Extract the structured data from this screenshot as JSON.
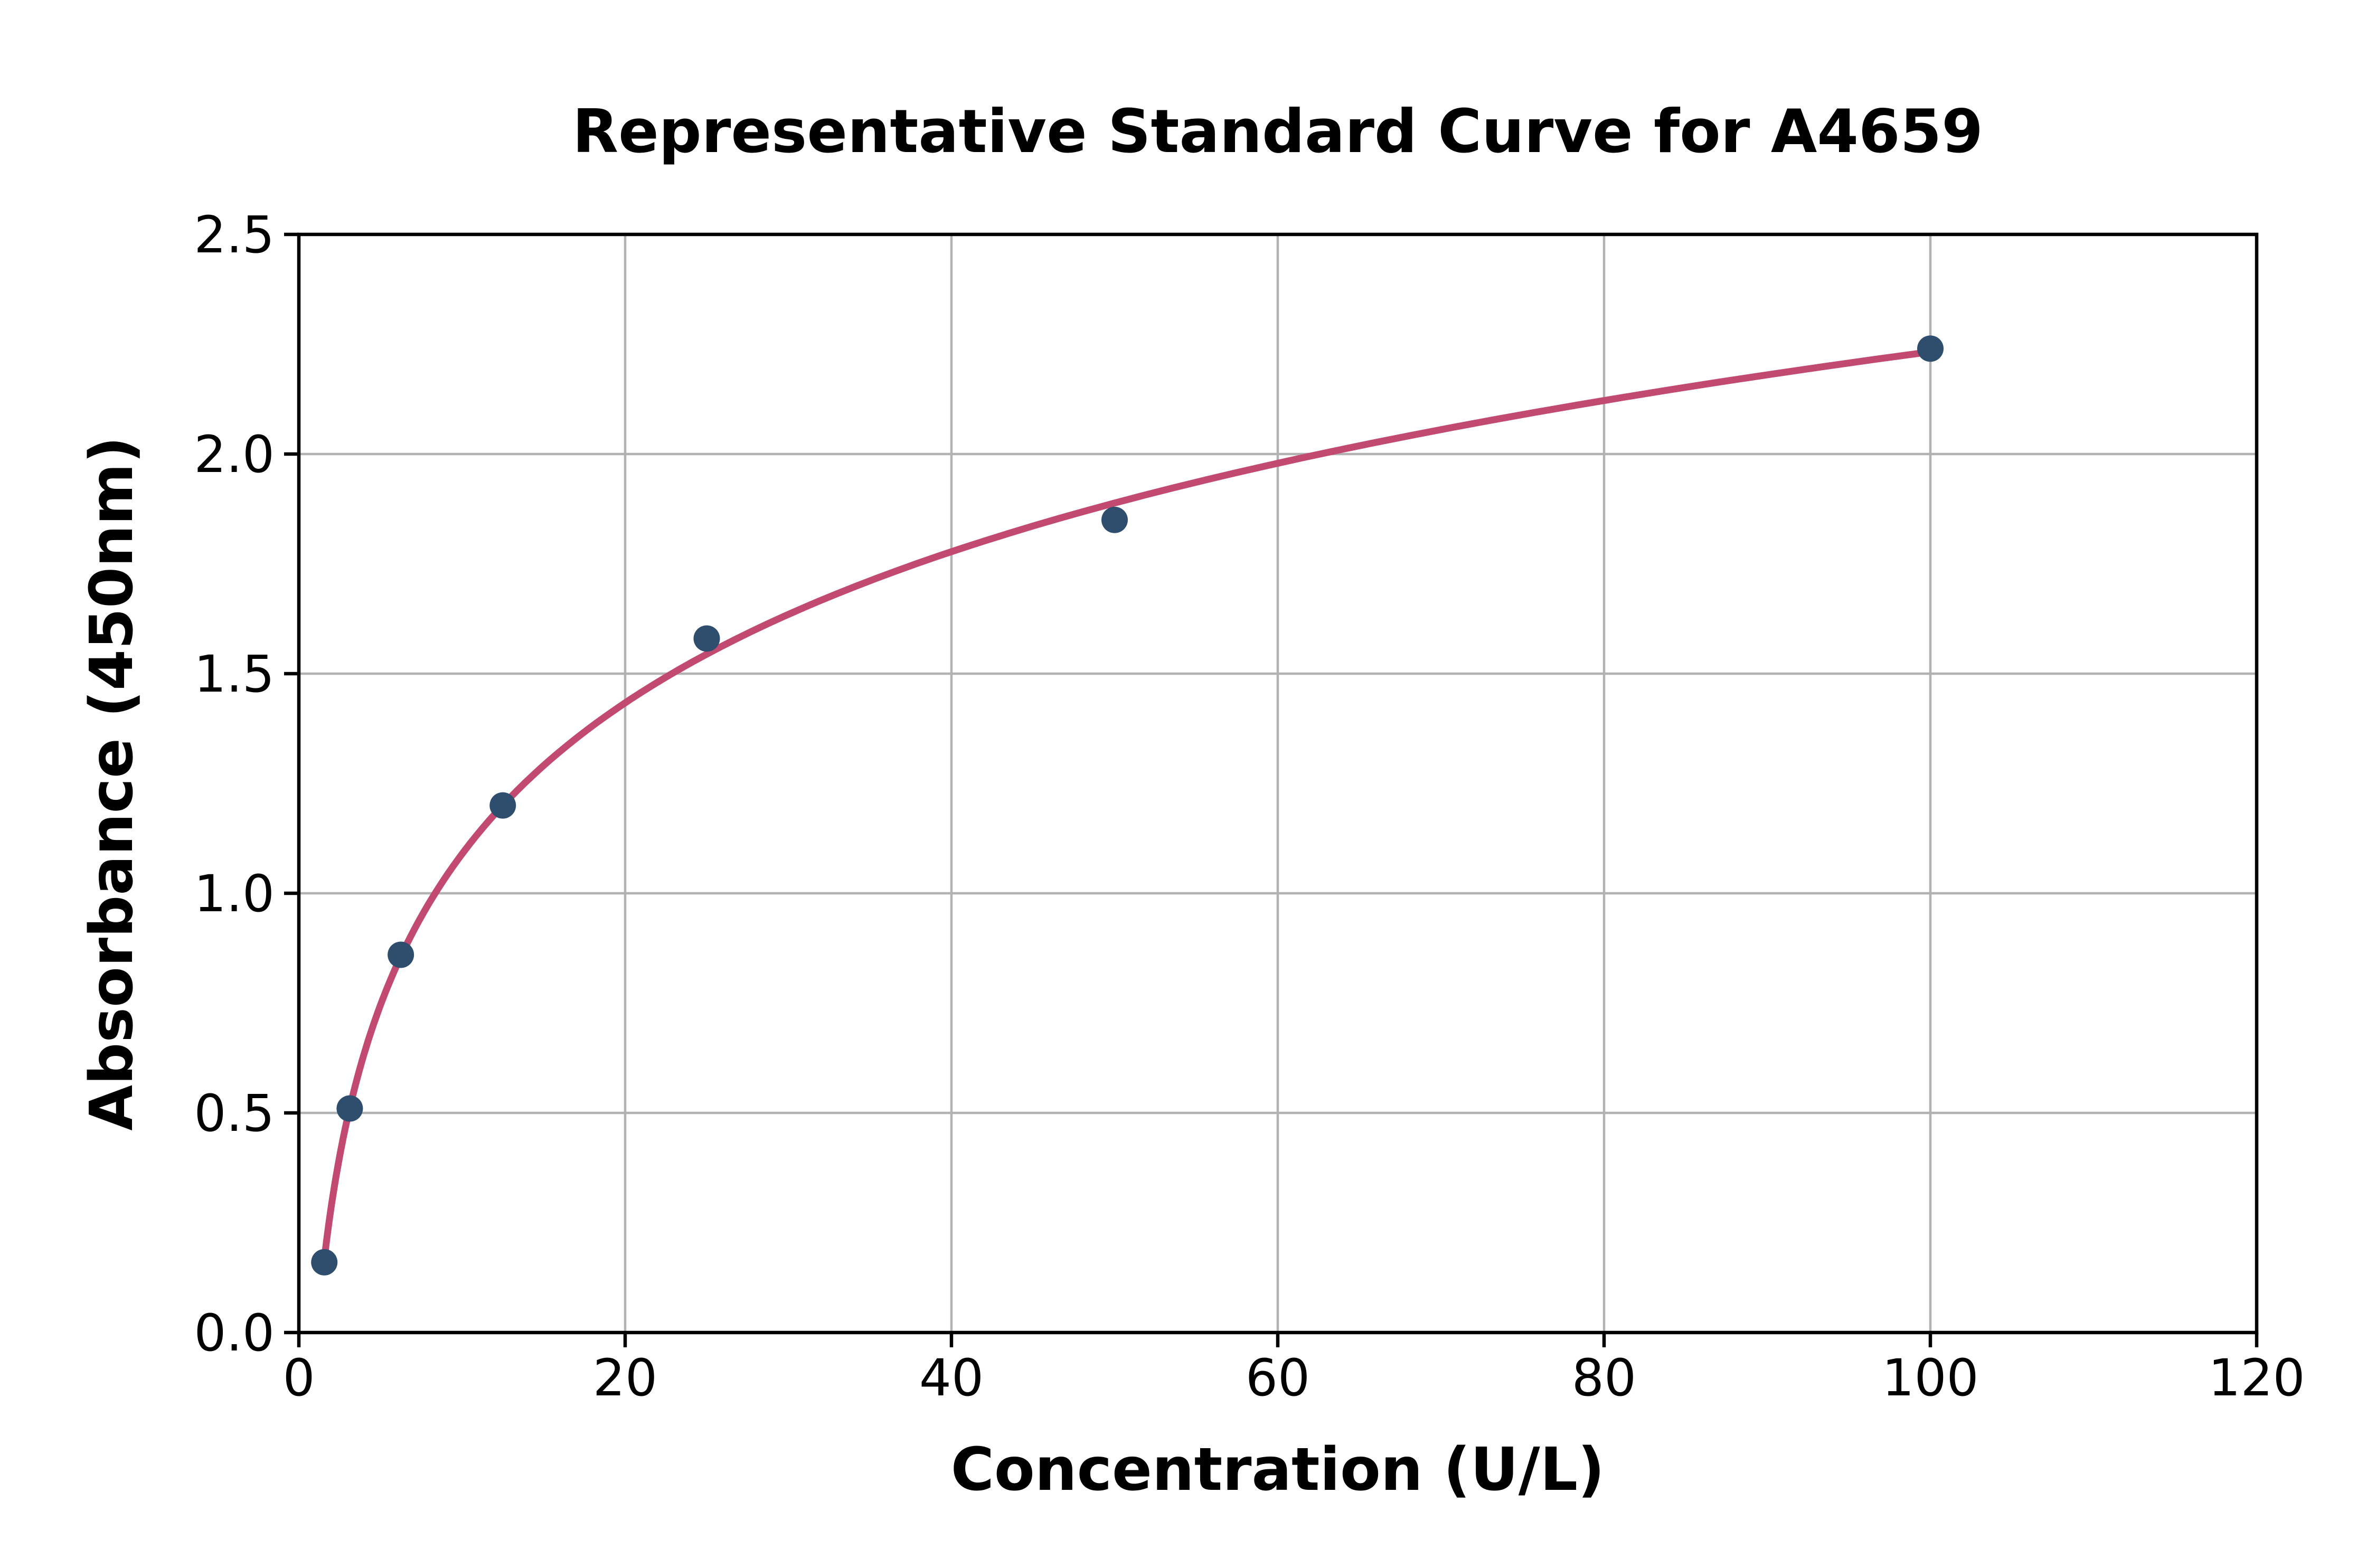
{
  "title": "Representative Standard Curve for A4659",
  "chart_data": {
    "type": "scatter",
    "title": "Representative Standard Curve for A4659",
    "xlabel": "Concentration (U/L)",
    "ylabel": "Absorbance (450nm)",
    "x": [
      1.56,
      3.12,
      6.25,
      12.5,
      25,
      50,
      100
    ],
    "y": [
      0.16,
      0.51,
      0.86,
      1.2,
      1.58,
      1.85,
      2.24
    ],
    "xlim": [
      0,
      120
    ],
    "ylim": [
      0,
      2.5
    ],
    "x_ticks": [
      0,
      20,
      40,
      60,
      80,
      100,
      120
    ],
    "y_ticks": [
      0,
      0.5,
      1,
      1.5,
      2,
      2.5
    ],
    "grid": true,
    "legend": "none",
    "fit_curve": {
      "model": "logarithmic",
      "a": 0.4965,
      "b": -0.0538,
      "x_start": 1.56,
      "x_end": 100
    },
    "colors": {
      "curve": "#c24a70",
      "marker": "#2f4d6d",
      "grid": "#b2b2b2",
      "axis": "#000000",
      "background": "#ffffff"
    }
  }
}
